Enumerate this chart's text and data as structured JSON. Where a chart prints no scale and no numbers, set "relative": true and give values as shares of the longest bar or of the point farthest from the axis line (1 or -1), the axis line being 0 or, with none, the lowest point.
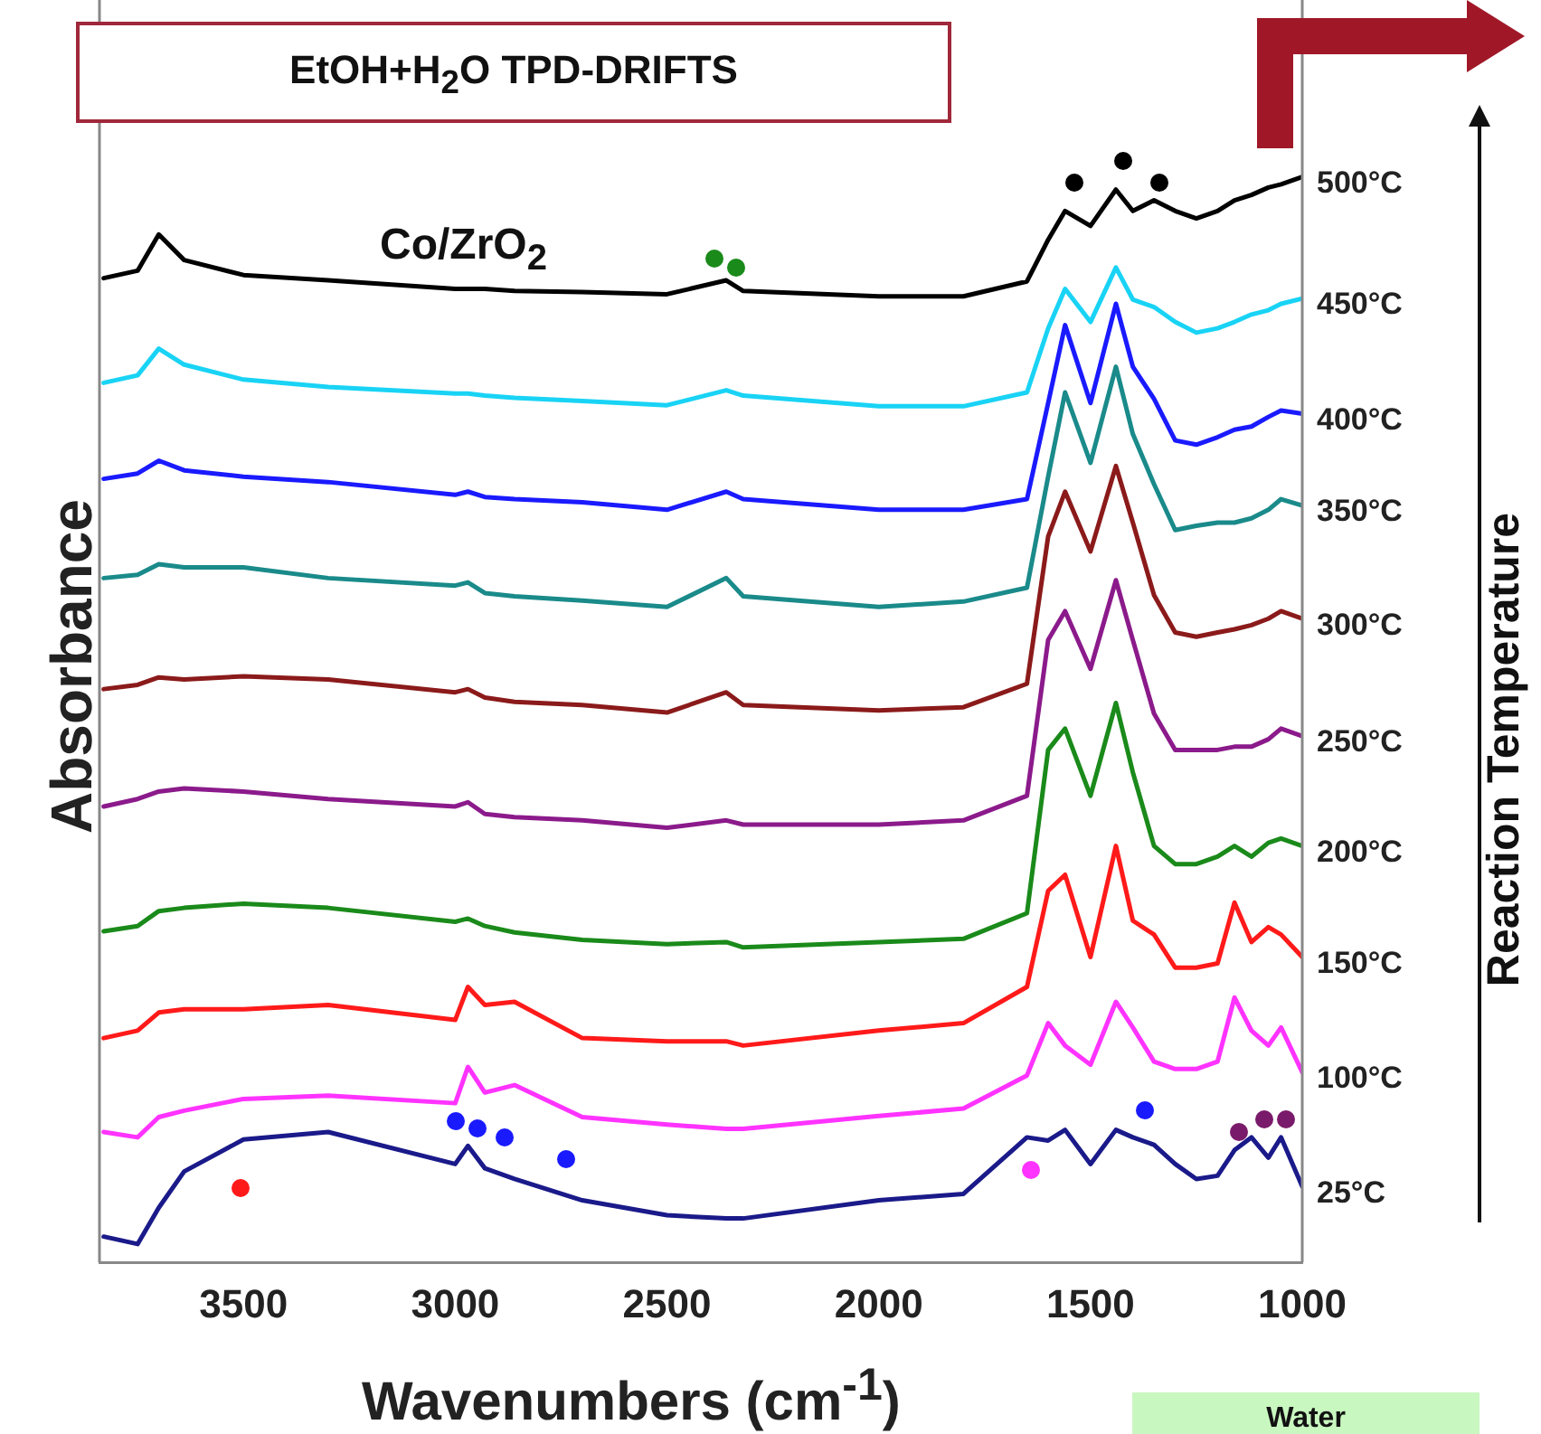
{
  "chart_data": {
    "type": "line",
    "relative": true,
    "title": "EtOH+H$_{2}$O TPD-DRIFTS",
    "xlabel": "Wavenumbers (cm$^{-1}$)",
    "ylabel": "Absorbance",
    "annotations": [
      "Co/ZrO$_{2}$",
      "Reaction Temperature",
      "Water"
    ],
    "marker": "none",
    "line_style": "solid",
    "legend": false,
    "grid": false,
    "xlim": [
      3840,
      1000
    ],
    "xticks": [
      3500,
      3000,
      2500,
      2000,
      1500,
      1000
    ],
    "x": [
      3830,
      3750,
      3700,
      3640,
      3500,
      3300,
      3000,
      2970,
      2930,
      2860,
      2700,
      2500,
      2360,
      2320,
      2000,
      1800,
      1650,
      1600,
      1560,
      1500,
      1440,
      1400,
      1350,
      1300,
      1250,
      1200,
      1160,
      1120,
      1080,
      1050,
      1000
    ],
    "series": [
      {
        "name": "500°C",
        "color": "#000000",
        "values": [
          0.905,
          0.912,
          0.946,
          0.922,
          0.908,
          0.903,
          0.895,
          0.895,
          0.895,
          0.893,
          0.892,
          0.89,
          0.903,
          0.893,
          0.888,
          0.888,
          0.902,
          0.941,
          0.968,
          0.954,
          0.988,
          0.968,
          0.978,
          0.968,
          0.961,
          0.968,
          0.978,
          0.983,
          0.99,
          0.993,
          1
        ]
      },
      {
        "name": "450°C",
        "color": "#19d3f5",
        "values": [
          0.807,
          0.814,
          0.839,
          0.824,
          0.81,
          0.803,
          0.797,
          0.797,
          0.795,
          0.793,
          0.79,
          0.786,
          0.8,
          0.795,
          0.785,
          0.785,
          0.798,
          0.858,
          0.895,
          0.864,
          0.915,
          0.885,
          0.878,
          0.864,
          0.854,
          0.858,
          0.864,
          0.871,
          0.875,
          0.881,
          0.886
        ]
      },
      {
        "name": "400°C",
        "color": "#1a1aff",
        "values": [
          0.717,
          0.722,
          0.734,
          0.725,
          0.719,
          0.714,
          0.702,
          0.705,
          0.7,
          0.698,
          0.695,
          0.688,
          0.705,
          0.698,
          0.688,
          0.688,
          0.698,
          0.788,
          0.861,
          0.788,
          0.881,
          0.822,
          0.792,
          0.753,
          0.749,
          0.756,
          0.763,
          0.766,
          0.775,
          0.781,
          0.778
        ]
      },
      {
        "name": "350°C",
        "color": "#1a8a8a",
        "values": [
          0.624,
          0.627,
          0.637,
          0.634,
          0.634,
          0.624,
          0.617,
          0.62,
          0.61,
          0.607,
          0.603,
          0.597,
          0.624,
          0.607,
          0.597,
          0.602,
          0.615,
          0.719,
          0.798,
          0.732,
          0.822,
          0.759,
          0.712,
          0.669,
          0.673,
          0.676,
          0.676,
          0.68,
          0.688,
          0.698,
          0.692
        ]
      },
      {
        "name": "300°C",
        "color": "#8b1a1a",
        "values": [
          0.52,
          0.524,
          0.531,
          0.529,
          0.532,
          0.529,
          0.517,
          0.52,
          0.512,
          0.508,
          0.505,
          0.498,
          0.517,
          0.505,
          0.5,
          0.503,
          0.525,
          0.663,
          0.705,
          0.649,
          0.729,
          0.676,
          0.608,
          0.573,
          0.569,
          0.573,
          0.576,
          0.58,
          0.586,
          0.593,
          0.586
        ]
      },
      {
        "name": "250°C",
        "color": "#8b1a8b",
        "values": [
          0.41,
          0.417,
          0.424,
          0.427,
          0.424,
          0.417,
          0.41,
          0.414,
          0.403,
          0.4,
          0.397,
          0.39,
          0.397,
          0.393,
          0.393,
          0.397,
          0.42,
          0.566,
          0.593,
          0.539,
          0.622,
          0.566,
          0.497,
          0.463,
          0.463,
          0.463,
          0.466,
          0.466,
          0.473,
          0.483,
          0.476
        ]
      },
      {
        "name": "200°C",
        "color": "#1a8a1a",
        "values": [
          0.293,
          0.298,
          0.312,
          0.315,
          0.319,
          0.315,
          0.302,
          0.305,
          0.298,
          0.292,
          0.285,
          0.281,
          0.283,
          0.278,
          0.283,
          0.286,
          0.31,
          0.463,
          0.483,
          0.42,
          0.507,
          0.442,
          0.373,
          0.356,
          0.356,
          0.363,
          0.373,
          0.363,
          0.376,
          0.38,
          0.373
        ]
      },
      {
        "name": "150°C",
        "color": "#ff1a1a",
        "values": [
          0.193,
          0.2,
          0.217,
          0.22,
          0.22,
          0.224,
          0.21,
          0.241,
          0.224,
          0.227,
          0.193,
          0.19,
          0.19,
          0.186,
          0.2,
          0.207,
          0.241,
          0.331,
          0.346,
          0.269,
          0.373,
          0.303,
          0.29,
          0.259,
          0.259,
          0.263,
          0.32,
          0.283,
          0.297,
          0.29,
          0.269
        ]
      },
      {
        "name": "100°C",
        "color": "#ff33ff",
        "values": [
          0.105,
          0.1,
          0.119,
          0.125,
          0.136,
          0.139,
          0.132,
          0.166,
          0.142,
          0.149,
          0.119,
          0.112,
          0.108,
          0.108,
          0.12,
          0.127,
          0.158,
          0.207,
          0.186,
          0.168,
          0.227,
          0.203,
          0.171,
          0.164,
          0.164,
          0.171,
          0.231,
          0.2,
          0.186,
          0.203,
          0.161
        ]
      },
      {
        "name": "25°C",
        "color": "#1a1a8a",
        "values": [
          0.007,
          0,
          0.034,
          0.068,
          0.098,
          0.105,
          0.075,
          0.092,
          0.071,
          0.061,
          0.041,
          0.027,
          0.024,
          0.024,
          0.041,
          0.047,
          0.1,
          0.097,
          0.107,
          0.075,
          0.107,
          0.1,
          0.093,
          0.075,
          0.061,
          0.064,
          0.088,
          0.1,
          0.081,
          0.1,
          0.054
        ]
      }
    ]
  }
}
